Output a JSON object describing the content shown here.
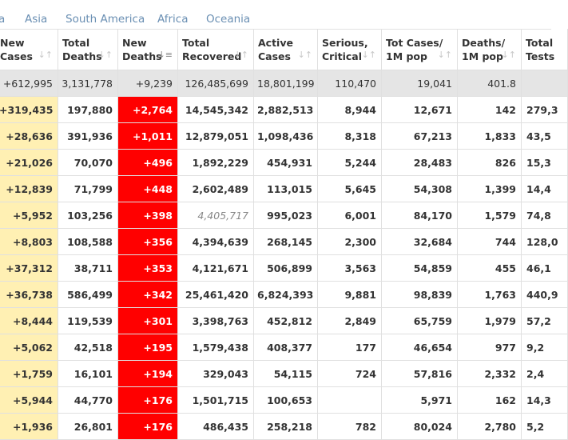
{
  "tabs": [
    {
      "label": "a"
    },
    {
      "label": "Asia"
    },
    {
      "label": "South America"
    },
    {
      "label": "Africa"
    },
    {
      "label": "Oceania"
    }
  ],
  "headers": [
    {
      "line1": "New",
      "line2": "Cases"
    },
    {
      "line1": "Total",
      "line2": "Deaths"
    },
    {
      "line1": "New",
      "line2": "Deaths"
    },
    {
      "line1": "Total",
      "line2": "Recovered"
    },
    {
      "line1": "Active",
      "line2": "Cases"
    },
    {
      "line1": "Serious,",
      "line2": "Critical"
    },
    {
      "line1": "Tot Cases/",
      "line2": "1M pop"
    },
    {
      "line1": "Deaths/",
      "line2": "1M pop"
    },
    {
      "line1": "Total",
      "line2": "Tests"
    }
  ],
  "total_row": [
    "+612,995",
    "3,131,778",
    "+9,239",
    "126,485,699",
    "18,801,199",
    "110,470",
    "19,041",
    "401.8",
    ""
  ],
  "rows": [
    [
      "+319,435",
      "197,880",
      "+2,764",
      "14,545,342",
      "2,882,513",
      "8,944",
      "12,671",
      "142",
      "279,3"
    ],
    [
      "+28,636",
      "391,936",
      "+1,011",
      "12,879,051",
      "1,098,436",
      "8,318",
      "67,213",
      "1,833",
      "43,5"
    ],
    [
      "+21,026",
      "70,070",
      "+496",
      "1,892,229",
      "454,931",
      "5,244",
      "28,483",
      "826",
      "15,3"
    ],
    [
      "+12,839",
      "71,799",
      "+448",
      "2,602,489",
      "113,015",
      "5,645",
      "54,308",
      "1,399",
      "14,4"
    ],
    [
      "+5,952",
      "103,256",
      "+398",
      "4,405,717",
      "995,023",
      "6,001",
      "84,170",
      "1,579",
      "74,8"
    ],
    [
      "+8,803",
      "108,588",
      "+356",
      "4,394,639",
      "268,145",
      "2,300",
      "32,684",
      "744",
      "128,0"
    ],
    [
      "+37,312",
      "38,711",
      "+353",
      "4,121,671",
      "506,899",
      "3,563",
      "54,859",
      "455",
      "46,1"
    ],
    [
      "+36,738",
      "586,499",
      "+342",
      "25,461,420",
      "6,824,393",
      "9,881",
      "98,839",
      "1,763",
      "440,9"
    ],
    [
      "+8,444",
      "119,539",
      "+301",
      "3,398,763",
      "452,812",
      "2,849",
      "65,759",
      "1,979",
      "57,2"
    ],
    [
      "+5,062",
      "42,518",
      "+195",
      "1,579,438",
      "408,377",
      "177",
      "46,654",
      "977",
      "9,2"
    ],
    [
      "+1,759",
      "16,101",
      "+194",
      "329,043",
      "54,115",
      "724",
      "57,816",
      "2,332",
      "2,4"
    ],
    [
      "+5,944",
      "44,770",
      "+176",
      "1,501,715",
      "100,653",
      "",
      "5,971",
      "162",
      "14,3"
    ],
    [
      "+1,936",
      "26,801",
      "+176",
      "486,435",
      "258,218",
      "782",
      "80,024",
      "2,780",
      "5,2"
    ]
  ]
}
